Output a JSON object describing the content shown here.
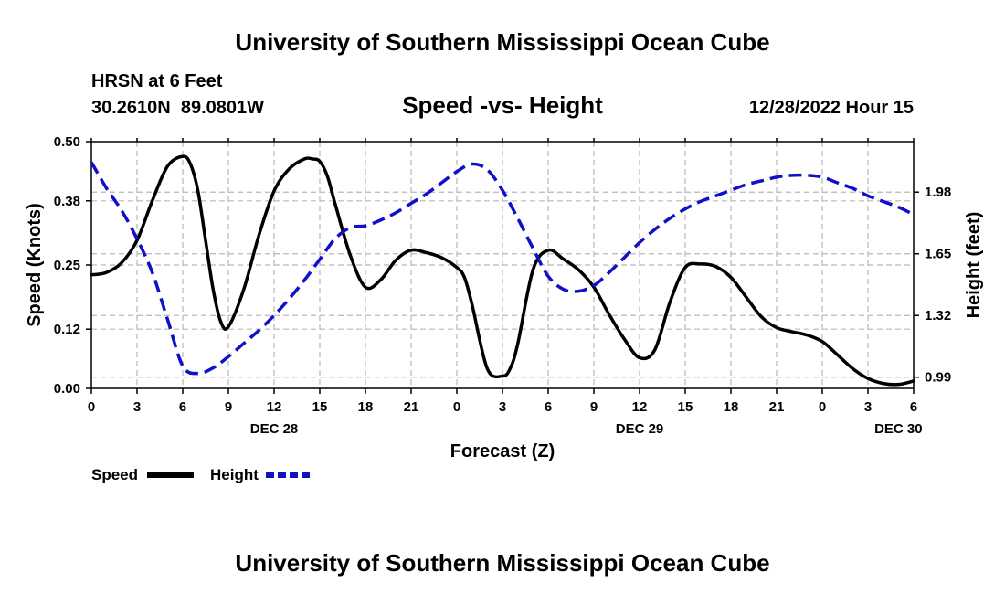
{
  "header": {
    "title": "University of Southern Mississippi Ocean Cube",
    "station": "HRSN at 6 Feet",
    "coords": "30.2610N  89.0801W",
    "plot_title": "Speed -vs- Height",
    "datetime": "12/28/2022 Hour 15"
  },
  "footer": {
    "title": "University of Southern Mississippi Ocean Cube"
  },
  "colors": {
    "speed": "#000000",
    "height": "#1010c8",
    "grid": "#b8b8b8"
  },
  "chart_data": {
    "type": "line",
    "title": "Speed -vs- Height",
    "xlabel": "Forecast (Z)",
    "ylabel": "Speed (Knots)",
    "y2label": "Height (feet)",
    "xlim": [
      0,
      54
    ],
    "ylim": [
      0,
      0.5
    ],
    "y2lim": [
      0.93,
      2.25
    ],
    "x_ticks": [
      0,
      3,
      6,
      9,
      12,
      15,
      18,
      21,
      24,
      27,
      30,
      33,
      36,
      39,
      42,
      45,
      48,
      51,
      54
    ],
    "x_tick_labels": [
      "0",
      "3",
      "6",
      "9",
      "12",
      "15",
      "18",
      "21",
      "0",
      "3",
      "6",
      "9",
      "12",
      "15",
      "18",
      "21",
      "0",
      "3",
      "6"
    ],
    "date_labels": [
      {
        "x": 12,
        "label": "DEC 28"
      },
      {
        "x": 36,
        "label": "DEC 29"
      },
      {
        "x": 53,
        "label": "DEC 30"
      }
    ],
    "y_ticks": [
      0.0,
      0.12,
      0.25,
      0.38,
      0.5
    ],
    "y_tick_labels": [
      "0.00",
      "0.12",
      "0.25",
      "0.38",
      "0.50"
    ],
    "y2_ticks": [
      0.99,
      1.32,
      1.65,
      1.98
    ],
    "y2_tick_labels": [
      "0.99",
      "1.32",
      "1.65",
      "1.98"
    ],
    "grid": true,
    "series": [
      {
        "name": "Speed",
        "axis": "left",
        "style": "solid",
        "x": [
          0,
          1,
          2,
          3,
          4,
          5,
          6,
          6.5,
          7,
          7.5,
          8,
          8.5,
          9,
          10,
          11,
          12,
          13,
          14,
          14.5,
          15,
          15.5,
          16,
          17,
          18,
          19,
          20,
          21,
          22,
          23,
          24,
          24.5,
          25,
          26,
          27,
          27.5,
          28,
          29,
          30,
          31,
          32,
          33,
          34,
          35,
          36,
          37,
          38,
          39,
          40,
          41,
          42,
          43,
          44,
          45,
          46,
          47,
          48,
          49,
          50,
          51,
          52,
          53,
          54
        ],
        "values": [
          0.23,
          0.235,
          0.255,
          0.3,
          0.38,
          0.45,
          0.47,
          0.455,
          0.4,
          0.3,
          0.2,
          0.135,
          0.125,
          0.2,
          0.31,
          0.4,
          0.445,
          0.465,
          0.465,
          0.46,
          0.43,
          0.375,
          0.27,
          0.205,
          0.22,
          0.26,
          0.28,
          0.275,
          0.265,
          0.245,
          0.225,
          0.17,
          0.04,
          0.025,
          0.04,
          0.09,
          0.24,
          0.28,
          0.262,
          0.24,
          0.205,
          0.15,
          0.1,
          0.062,
          0.078,
          0.175,
          0.245,
          0.252,
          0.247,
          0.225,
          0.185,
          0.145,
          0.123,
          0.115,
          0.108,
          0.095,
          0.068,
          0.04,
          0.02,
          0.01,
          0.008,
          0.015
        ]
      },
      {
        "name": "Height",
        "axis": "right",
        "style": "dashed",
        "x": [
          0,
          1,
          2,
          3,
          4,
          5,
          6,
          7,
          8,
          9,
          10,
          11,
          12,
          13,
          14,
          15,
          16,
          17,
          18,
          19,
          20,
          21,
          22,
          23,
          24,
          25,
          26,
          27,
          28,
          29,
          30,
          31,
          32,
          33,
          34,
          35,
          36,
          37,
          38,
          39,
          40,
          41,
          42,
          43,
          44,
          45,
          46,
          47,
          48,
          49,
          50,
          51,
          52,
          53,
          54
        ],
        "values": [
          2.14,
          2.0,
          1.88,
          1.73,
          1.55,
          1.3,
          1.05,
          1.01,
          1.04,
          1.1,
          1.17,
          1.24,
          1.32,
          1.41,
          1.51,
          1.62,
          1.73,
          1.79,
          1.8,
          1.83,
          1.87,
          1.92,
          1.97,
          2.03,
          2.09,
          2.13,
          2.1,
          1.99,
          1.84,
          1.68,
          1.53,
          1.46,
          1.45,
          1.48,
          1.55,
          1.63,
          1.71,
          1.78,
          1.84,
          1.89,
          1.93,
          1.96,
          1.99,
          2.02,
          2.04,
          2.06,
          2.07,
          2.07,
          2.06,
          2.03,
          2.0,
          1.96,
          1.93,
          1.9,
          1.86
        ]
      }
    ],
    "legend": {
      "placement": "bottom-left",
      "entries": [
        "Speed",
        "Height"
      ]
    }
  }
}
